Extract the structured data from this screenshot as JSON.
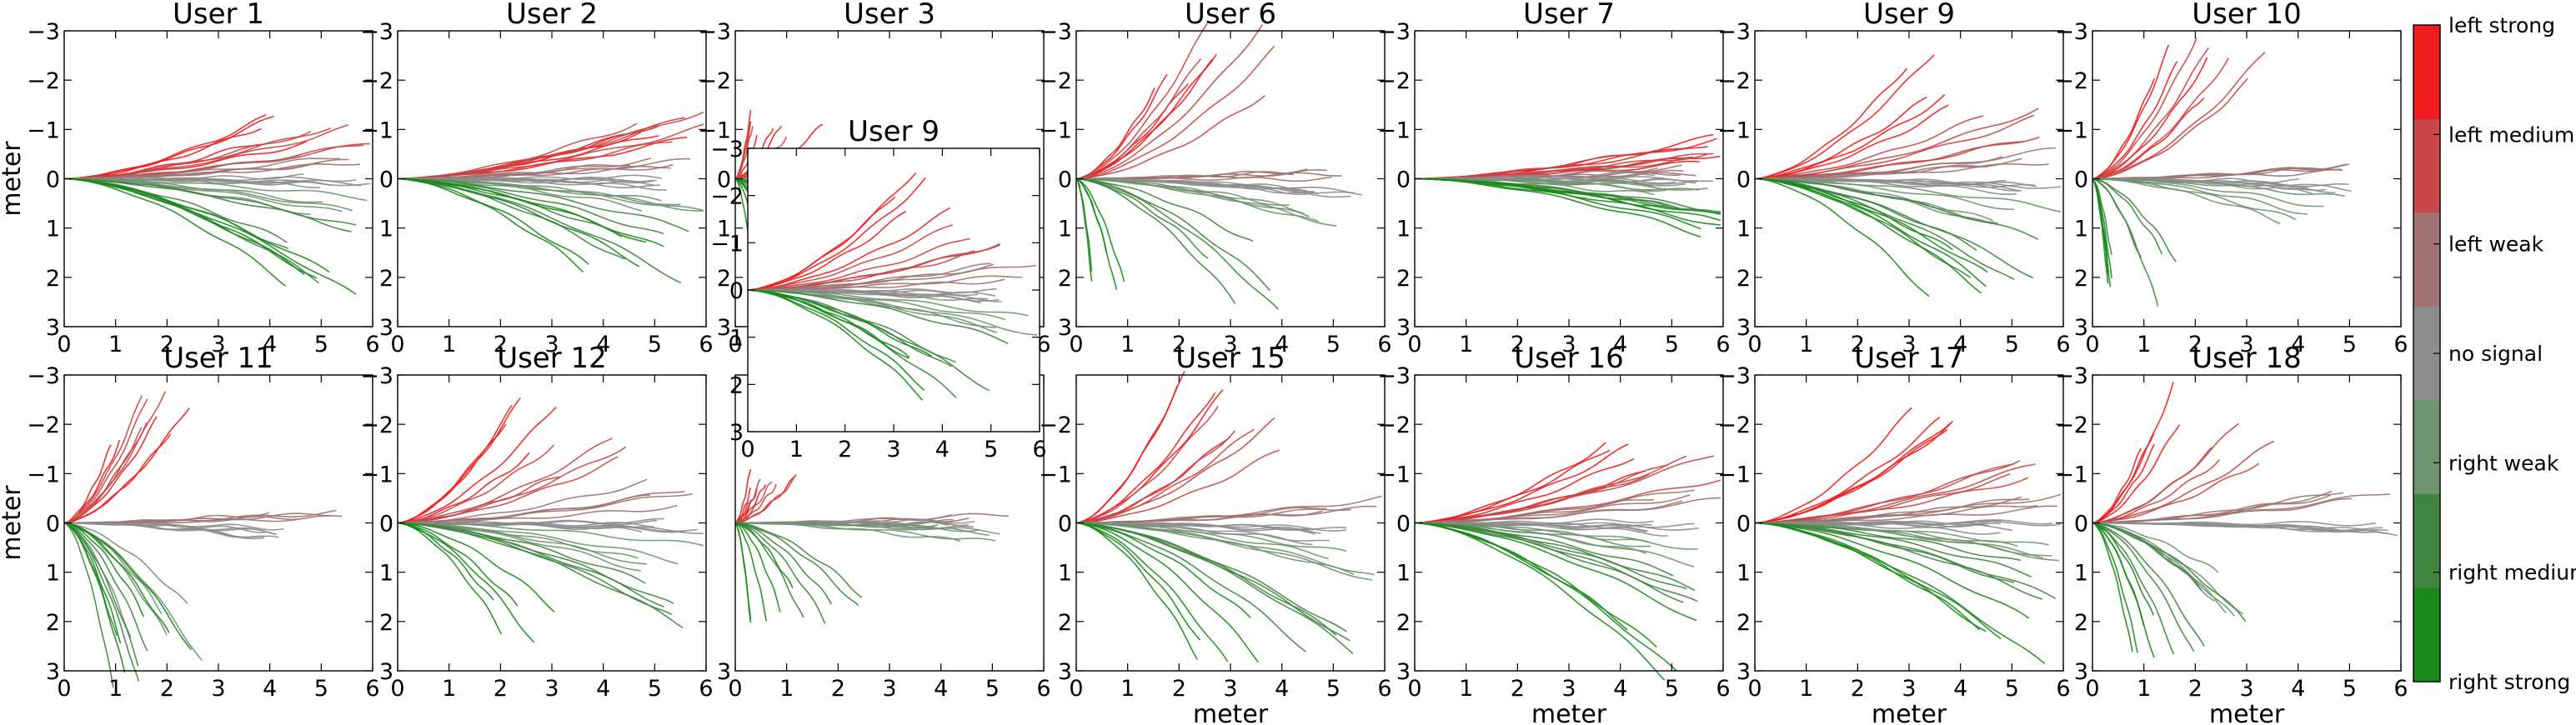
{
  "figure": {
    "colorbar": {
      "levels": [
        "left strong",
        "left medium",
        "left weak",
        "no signal",
        "right weak",
        "right medium",
        "right strong"
      ],
      "colors": [
        "#ee1c1c",
        "#c84646",
        "#a07272",
        "#8d8d8d",
        "#6f946f",
        "#3f853f",
        "#1a8a1a"
      ]
    }
  },
  "chart_data": [
    {
      "type": "line",
      "title": "User 1",
      "xlabel": "",
      "ylabel": "meter",
      "xlim": [
        0,
        6
      ],
      "ylim": [
        3,
        -3
      ],
      "xticks": [
        "0",
        "1",
        "2",
        "3",
        "4",
        "5",
        "6"
      ],
      "yticks": [
        "−3",
        "−2",
        "−1",
        "0",
        "1",
        "2",
        "3"
      ],
      "series": [
        {
          "values": {
            "left strong": [
              5.0,
              -1.3
            ],
            "left medium": [
              5.9,
              -1.0
            ],
            "left weak": [
              5.9,
              -0.4
            ],
            "no signal": [
              5.9,
              0.1
            ],
            "right weak": [
              5.9,
              0.8
            ],
            "right medium": [
              5.6,
              1.8
            ],
            "right strong": [
              5.6,
              2.4
            ]
          }
        }
      ]
    },
    {
      "type": "line",
      "title": "User 2",
      "xlabel": "",
      "ylabel": "",
      "xlim": [
        0,
        6
      ],
      "ylim": [
        3,
        -3
      ],
      "xticks": [
        "0",
        "1",
        "2",
        "3",
        "4",
        "5",
        "6"
      ],
      "yticks": [
        "−3",
        "−2",
        "−1",
        "0",
        "1",
        "2",
        "3"
      ],
      "series": [
        {
          "values": {
            "left strong": [
              5.6,
              -1.1
            ],
            "left medium": [
              5.9,
              -1.3
            ],
            "left weak": [
              5.9,
              -0.4
            ],
            "no signal": [
              5.9,
              0.1
            ],
            "right weak": [
              5.9,
              0.6
            ],
            "right medium": [
              5.7,
              1.8
            ],
            "right strong": [
              5.0,
              2.1
            ]
          }
        }
      ]
    },
    {
      "type": "line",
      "title": "User 3",
      "xlabel": "",
      "ylabel": "",
      "xlim": [
        0,
        6
      ],
      "ylim": [
        3,
        -3
      ],
      "xticks": [
        "0",
        "1",
        "2",
        "3",
        "4",
        "5",
        "6"
      ],
      "yticks": [
        "−3",
        "−2",
        "−1",
        "0",
        "1",
        "2",
        "3"
      ],
      "series": [
        {
          "values": {
            "left strong": [
              1.6,
              -1.2
            ],
            "left medium": [
              1.0,
              -1.0
            ],
            "left weak": [
              5.0,
              -0.1
            ],
            "no signal": [
              5.2,
              0.1
            ],
            "right weak": [
              5.0,
              0.3
            ],
            "right medium": [
              2.2,
              2.2
            ],
            "right strong": [
              1.2,
              2.8
            ]
          }
        }
      ]
    },
    {
      "type": "line",
      "title": "User 6",
      "xlabel": "",
      "ylabel": "",
      "xlim": [
        0,
        6
      ],
      "ylim": [
        3,
        -3
      ],
      "xticks": [
        "0",
        "1",
        "2",
        "3",
        "4",
        "5",
        "6"
      ],
      "yticks": [
        "−3",
        "−2",
        "−1",
        "0",
        "1",
        "2",
        "3"
      ],
      "series": [
        {
          "values": {
            "left strong": [
              2.8,
              -3.0
            ],
            "left medium": [
              3.7,
              -3.0
            ],
            "left weak": [
              5.0,
              -0.1
            ],
            "no signal": [
              5.7,
              0.4
            ],
            "right weak": [
              5.3,
              0.9
            ],
            "right medium": [
              3.9,
              2.4
            ],
            "right strong": [
              1.0,
              2.6
            ]
          }
        }
      ]
    },
    {
      "type": "line",
      "title": "User 7",
      "xlabel": "",
      "ylabel": "",
      "xlim": [
        0,
        6
      ],
      "ylim": [
        3,
        -3
      ],
      "xticks": [
        "0",
        "1",
        "2",
        "3",
        "4",
        "5",
        "6"
      ],
      "yticks": [
        "−3",
        "−2",
        "−1",
        "0",
        "1",
        "2",
        "3"
      ],
      "series": [
        {
          "values": {
            "left strong": [
              5.9,
              -0.8
            ],
            "left medium": [
              5.9,
              -0.6
            ],
            "left weak": [
              5.9,
              -0.3
            ],
            "no signal": [
              5.9,
              0.0
            ],
            "right weak": [
              5.9,
              0.3
            ],
            "right medium": [
              5.9,
              0.7
            ],
            "right strong": [
              5.9,
              1.1
            ]
          }
        }
      ]
    },
    {
      "type": "line",
      "title": "User 9",
      "xlabel": "",
      "ylabel": "",
      "xlim": [
        0,
        6
      ],
      "ylim": [
        3,
        -3
      ],
      "xticks": [
        "0",
        "1",
        "2",
        "3",
        "4",
        "5",
        "6"
      ],
      "yticks": [
        "−3",
        "−2",
        "−1",
        "0",
        "1",
        "2",
        "3"
      ],
      "series": [
        {
          "values": {
            "left strong": [
              4.0,
              -2.3
            ],
            "left medium": [
              5.6,
              -1.3
            ],
            "left weak": [
              5.9,
              -0.5
            ],
            "no signal": [
              5.9,
              0.2
            ],
            "right weak": [
              5.9,
              0.9
            ],
            "right medium": [
              5.5,
              2.2
            ],
            "right strong": [
              4.7,
              2.4
            ]
          }
        }
      ]
    },
    {
      "type": "line",
      "title": "User 10",
      "xlabel": "",
      "ylabel": "",
      "xlim": [
        0,
        6
      ],
      "ylim": [
        3,
        -3
      ],
      "xticks": [
        "0",
        "1",
        "2",
        "3",
        "4",
        "5",
        "6"
      ],
      "yticks": [
        "−3",
        "−2",
        "−1",
        "0",
        "1",
        "2",
        "3"
      ],
      "series": [
        {
          "values": {
            "left strong": [
              2.3,
              -3.0
            ],
            "left medium": [
              3.4,
              -3.0
            ],
            "left weak": [
              5.0,
              -0.2
            ],
            "no signal": [
              5.4,
              0.2
            ],
            "right weak": [
              5.0,
              0.8
            ],
            "right medium": [
              1.7,
              2.5
            ],
            "right strong": [
              0.8,
              2.5
            ]
          }
        }
      ]
    },
    {
      "type": "line",
      "title": "User 11",
      "xlabel": "",
      "ylabel": "meter",
      "xlim": [
        0,
        6
      ],
      "ylim": [
        3,
        -3
      ],
      "xticks": [
        "0",
        "1",
        "2",
        "3",
        "4",
        "5",
        "6"
      ],
      "yticks": [
        "−3",
        "−2",
        "−1",
        "0",
        "1",
        "2",
        "3"
      ],
      "series": [
        {
          "values": {
            "left strong": [
              2.3,
              -3.0
            ],
            "left medium": [
              2.9,
              -3.0
            ],
            "left weak": [
              5.3,
              -0.2
            ],
            "no signal": [
              5.2,
              0.3
            ],
            "right weak": [
              2.5,
              2.6
            ],
            "right medium": [
              2.0,
              3.0
            ],
            "right strong": [
              2.3,
              3.0
            ]
          }
        }
      ]
    },
    {
      "type": "line",
      "title": "User 12",
      "xlabel": "",
      "ylabel": "",
      "xlim": [
        0,
        6
      ],
      "ylim": [
        3,
        -3
      ],
      "xticks": [
        "0",
        "1",
        "2",
        "3",
        "4",
        "5",
        "6"
      ],
      "yticks": [
        "−3",
        "−2",
        "−1",
        "0",
        "1",
        "2",
        "3"
      ],
      "series": [
        {
          "values": {
            "left strong": [
              3.5,
              -2.6
            ],
            "left medium": [
              4.4,
              -1.8
            ],
            "left weak": [
              5.9,
              -0.8
            ],
            "no signal": [
              5.9,
              0.1
            ],
            "right weak": [
              5.9,
              0.9
            ],
            "right medium": [
              5.7,
              1.8
            ],
            "right strong": [
              3.0,
              2.4
            ]
          }
        }
      ]
    },
    {
      "type": "line",
      "title": "",
      "xlabel": "",
      "ylabel": "",
      "xlim": [
        0,
        6
      ],
      "ylim": [
        3,
        -3
      ],
      "xticks": [
        "0",
        "1",
        "2",
        "3",
        "4",
        "5",
        "6"
      ],
      "yticks": [
        "3"
      ],
      "series": [
        {
          "values": {
            "left strong": [
              1.0,
              -1.0
            ],
            "left medium": [
              1.3,
              -0.9
            ],
            "left weak": [
              5.2,
              -0.1
            ],
            "no signal": [
              5.2,
              0.1
            ],
            "right weak": [
              5.0,
              0.3
            ],
            "right medium": [
              2.3,
              2.0
            ],
            "right strong": [
              1.0,
              2.1
            ]
          }
        }
      ]
    },
    {
      "type": "line",
      "title": "User 15",
      "xlabel": "meter",
      "ylabel": "",
      "xlim": [
        0,
        6
      ],
      "ylim": [
        3,
        -3
      ],
      "xticks": [
        "0",
        "1",
        "2",
        "3",
        "4",
        "5",
        "6"
      ],
      "yticks": [
        "−2",
        "−1",
        "0",
        "1",
        "2",
        "3"
      ],
      "series": [
        {
          "values": {
            "left strong": [
              2.9,
              -2.9
            ],
            "left medium": [
              4.0,
              -2.3
            ],
            "left weak": [
              5.9,
              -0.4
            ],
            "no signal": [
              5.9,
              0.3
            ],
            "right weak": [
              5.9,
              1.0
            ],
            "right medium": [
              5.5,
              2.5
            ],
            "right strong": [
              3.6,
              2.8
            ]
          }
        }
      ]
    },
    {
      "type": "line",
      "title": "User 16",
      "xlabel": "meter",
      "ylabel": "",
      "xlim": [
        0,
        6
      ],
      "ylim": [
        3,
        -3
      ],
      "xticks": [
        "0",
        "1",
        "2",
        "3",
        "4",
        "5",
        "6"
      ],
      "yticks": [
        "−3",
        "−2",
        "−1",
        "0",
        "1",
        "2",
        "3"
      ],
      "series": [
        {
          "values": {
            "left strong": [
              4.5,
              -1.8
            ],
            "left medium": [
              5.9,
              -1.3
            ],
            "left weak": [
              5.9,
              -0.6
            ],
            "no signal": [
              5.9,
              0.1
            ],
            "right weak": [
              5.9,
              0.8
            ],
            "right medium": [
              5.8,
              1.8
            ],
            "right strong": [
              5.5,
              2.8
            ]
          }
        }
      ]
    },
    {
      "type": "line",
      "title": "User 17",
      "xlabel": "meter",
      "ylabel": "",
      "xlim": [
        0,
        6
      ],
      "ylim": [
        3,
        -3
      ],
      "xticks": [
        "0",
        "1",
        "2",
        "3",
        "4",
        "5",
        "6"
      ],
      "yticks": [
        "−3",
        "−2",
        "−1",
        "0",
        "1",
        "2",
        "3"
      ],
      "series": [
        {
          "values": {
            "left strong": [
              4.3,
              -2.2
            ],
            "left medium": [
              5.9,
              -1.2
            ],
            "left weak": [
              5.9,
              -0.5
            ],
            "no signal": [
              5.9,
              0.1
            ],
            "right weak": [
              5.9,
              0.7
            ],
            "right medium": [
              5.9,
              1.6
            ],
            "right strong": [
              5.6,
              2.9
            ]
          }
        }
      ]
    },
    {
      "type": "line",
      "title": "User 18",
      "xlabel": "meter",
      "ylabel": "",
      "xlim": [
        0,
        6
      ],
      "ylim": [
        3,
        -3
      ],
      "xticks": [
        "0",
        "1",
        "2",
        "3",
        "4",
        "5",
        "6"
      ],
      "yticks": [
        "−3",
        "−2",
        "−1",
        "0",
        "1",
        "2",
        "3"
      ],
      "series": [
        {
          "values": {
            "left strong": [
              2.0,
              -2.5
            ],
            "left medium": [
              3.6,
              -2.0
            ],
            "left weak": [
              5.8,
              -0.6
            ],
            "no signal": [
              5.8,
              0.2
            ],
            "right weak": [
              3.6,
              1.8
            ],
            "right medium": [
              2.8,
              2.5
            ],
            "right strong": [
              2.0,
              2.8
            ]
          }
        }
      ]
    },
    {
      "type": "line",
      "title": "User 9",
      "xlabel": "",
      "ylabel": "",
      "xlim": [
        0,
        6
      ],
      "ylim": [
        3,
        -3
      ],
      "xticks": [
        "0",
        "1",
        "2",
        "3",
        "4",
        "5",
        "6"
      ],
      "yticks": [
        "−3",
        "−2",
        "−1",
        "0",
        "1",
        "2",
        "3"
      ],
      "series": [
        {
          "values": {
            "left strong": [
              4.0,
              -2.3
            ],
            "left medium": [
              5.6,
              -1.3
            ],
            "left weak": [
              5.9,
              -0.5
            ],
            "no signal": [
              5.9,
              0.2
            ],
            "right weak": [
              5.9,
              0.9
            ],
            "right medium": [
              5.5,
              2.2
            ],
            "right strong": [
              4.7,
              2.4
            ]
          }
        }
      ]
    }
  ]
}
